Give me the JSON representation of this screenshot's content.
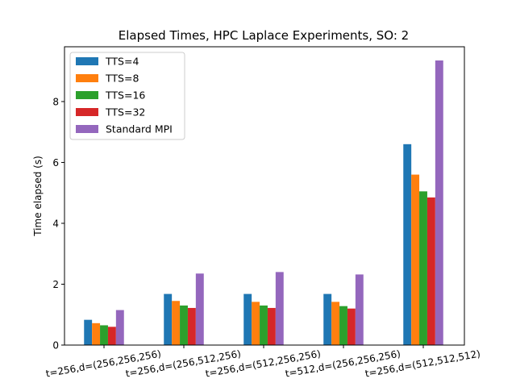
{
  "chart_data": {
    "type": "bar",
    "title": "Elapsed Times, HPC Laplace Experiments, SO: 2",
    "xlabel": "",
    "ylabel": "Time elapsed (s)",
    "ylim": [
      0,
      9.8
    ],
    "yticks": [
      0,
      2,
      4,
      6,
      8
    ],
    "grid": false,
    "legend_position": "top-left",
    "categories": [
      "t=256,d=(256,256,256)",
      "t=256,d=(256,512,256)",
      "t=256,d=(512,256,256)",
      "t=512,d=(256,256,256)",
      "t=256,d=(512,512,512)"
    ],
    "series": [
      {
        "name": "TTS=4",
        "color": "#1f77b4",
        "values": [
          0.83,
          1.68,
          1.68,
          1.68,
          6.6
        ]
      },
      {
        "name": "TTS=8",
        "color": "#ff7f0e",
        "values": [
          0.72,
          1.45,
          1.42,
          1.42,
          5.6
        ]
      },
      {
        "name": "TTS=16",
        "color": "#2ca02c",
        "values": [
          0.65,
          1.3,
          1.3,
          1.28,
          5.05
        ]
      },
      {
        "name": "TTS=32",
        "color": "#d62728",
        "values": [
          0.6,
          1.22,
          1.22,
          1.2,
          4.85
        ]
      },
      {
        "name": "Standard MPI",
        "color": "#9467bd",
        "values": [
          1.15,
          2.35,
          2.4,
          2.32,
          9.35
        ]
      }
    ]
  }
}
